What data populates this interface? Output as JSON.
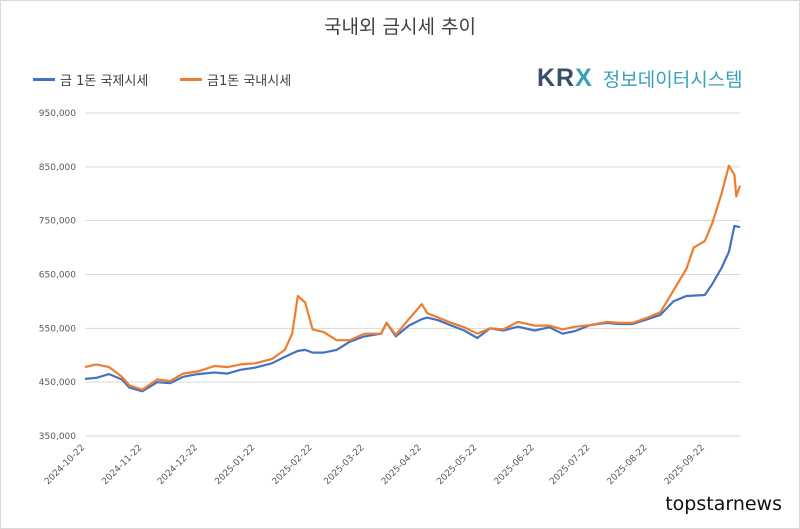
{
  "chart_data": {
    "type": "line",
    "title": "국내외 금시세 추이",
    "ylim": [
      350000,
      950000
    ],
    "y_ticks": [
      "350,000",
      "450,000",
      "550,000",
      "650,000",
      "750,000",
      "850,000",
      "950,000"
    ],
    "x_ticks": [
      "2024-10-22",
      "2024-11-22",
      "2024-12-22",
      "2025-01-22",
      "2025-02-22",
      "2025-03-22",
      "2025-04-22",
      "2025-05-22",
      "2025-06-22",
      "2025-07-22",
      "2025-08-22",
      "2025-09-22"
    ],
    "grid": "horizontal",
    "legend_position": "top-left",
    "series": [
      {
        "name": "금 1돈 국제시세",
        "color": "#4472c4",
        "x": [
          "2024-10-22",
          "2024-10-28",
          "2024-11-04",
          "2024-11-11",
          "2024-11-15",
          "2024-11-22",
          "2024-11-30",
          "2024-12-07",
          "2024-12-14",
          "2024-12-22",
          "2024-12-31",
          "2025-01-07",
          "2025-01-14",
          "2025-01-22",
          "2025-01-31",
          "2025-02-07",
          "2025-02-14",
          "2025-02-18",
          "2025-02-22",
          "2025-02-28",
          "2025-03-07",
          "2025-03-14",
          "2025-03-22",
          "2025-03-31",
          "2025-04-03",
          "2025-04-08",
          "2025-04-15",
          "2025-04-22",
          "2025-04-25",
          "2025-05-01",
          "2025-05-08",
          "2025-05-15",
          "2025-05-22",
          "2025-05-29",
          "2025-06-05",
          "2025-06-13",
          "2025-06-22",
          "2025-06-30",
          "2025-07-07",
          "2025-07-14",
          "2025-07-22",
          "2025-07-31",
          "2025-08-07",
          "2025-08-14",
          "2025-08-22",
          "2025-08-29",
          "2025-09-05",
          "2025-09-12",
          "2025-09-22",
          "2025-09-26",
          "2025-10-01",
          "2025-10-05",
          "2025-10-08",
          "2025-10-11"
        ],
        "values": [
          456000,
          458000,
          465000,
          455000,
          440000,
          433000,
          450000,
          448000,
          460000,
          465000,
          468000,
          466000,
          473000,
          477000,
          485000,
          497000,
          508000,
          510000,
          505000,
          505000,
          510000,
          525000,
          535000,
          540000,
          560000,
          535000,
          555000,
          567000,
          570000,
          565000,
          555000,
          546000,
          532000,
          550000,
          546000,
          553000,
          546000,
          552000,
          540000,
          545000,
          556000,
          560000,
          558000,
          558000,
          567000,
          575000,
          600000,
          610000,
          612000,
          632000,
          662000,
          692000,
          740000,
          738000
        ]
      },
      {
        "name": "금1돈 국내시세",
        "color": "#ed7d31",
        "x": [
          "2024-10-22",
          "2024-10-28",
          "2024-11-04",
          "2024-11-11",
          "2024-11-15",
          "2024-11-22",
          "2024-11-30",
          "2024-12-07",
          "2024-12-14",
          "2024-12-22",
          "2024-12-31",
          "2025-01-07",
          "2025-01-14",
          "2025-01-22",
          "2025-01-31",
          "2025-02-07",
          "2025-02-11",
          "2025-02-14",
          "2025-02-18",
          "2025-02-22",
          "2025-02-28",
          "2025-03-07",
          "2025-03-14",
          "2025-03-22",
          "2025-03-31",
          "2025-04-03",
          "2025-04-08",
          "2025-04-15",
          "2025-04-22",
          "2025-04-25",
          "2025-05-01",
          "2025-05-08",
          "2025-05-15",
          "2025-05-22",
          "2025-05-29",
          "2025-06-05",
          "2025-06-13",
          "2025-06-22",
          "2025-06-30",
          "2025-07-07",
          "2025-07-14",
          "2025-07-22",
          "2025-07-31",
          "2025-08-07",
          "2025-08-14",
          "2025-08-22",
          "2025-08-29",
          "2025-09-05",
          "2025-09-12",
          "2025-09-16",
          "2025-09-22",
          "2025-09-26",
          "2025-10-01",
          "2025-10-05",
          "2025-10-08",
          "2025-10-09",
          "2025-10-11"
        ],
        "values": [
          478000,
          483000,
          478000,
          460000,
          444000,
          436000,
          455000,
          452000,
          466000,
          470000,
          480000,
          478000,
          483000,
          485000,
          493000,
          510000,
          540000,
          610000,
          598000,
          548000,
          543000,
          528000,
          528000,
          540000,
          540000,
          560000,
          538000,
          567000,
          595000,
          578000,
          570000,
          560000,
          552000,
          540000,
          550000,
          548000,
          562000,
          555000,
          555000,
          548000,
          553000,
          556000,
          562000,
          560000,
          560000,
          570000,
          580000,
          620000,
          660000,
          700000,
          712000,
          745000,
          800000,
          852000,
          835000,
          795000,
          815000
        ]
      }
    ]
  },
  "brand": {
    "krx": "KRX",
    "subtitle": "정보데이터시스템"
  },
  "watermark": "topstarnews"
}
